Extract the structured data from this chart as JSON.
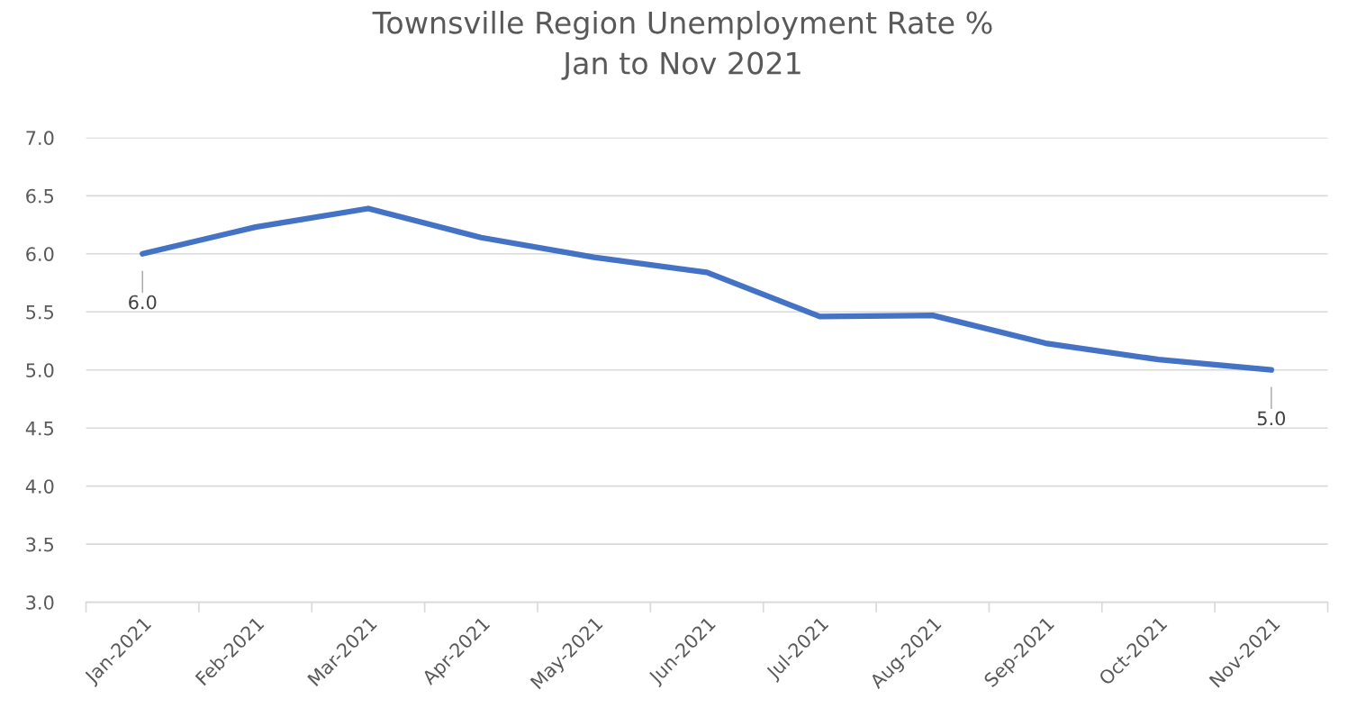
{
  "chart_data": {
    "type": "line",
    "title": "Townsville Region Unemployment Rate %\nJan to Nov 2021",
    "categories": [
      "Jan-2021",
      "Feb-2021",
      "Mar-2021",
      "Apr-2021",
      "May-2021",
      "Jun-2021",
      "Jul-2021",
      "Aug-2021",
      "Sep-2021",
      "Oct-2021",
      "Nov-2021"
    ],
    "series": [
      {
        "color": "#4472c4",
        "values": [
          6.0,
          6.23,
          6.39,
          6.14,
          5.97,
          5.84,
          5.46,
          5.47,
          5.23,
          5.09,
          5.0
        ],
        "value_labels": [
          "6.0",
          null,
          null,
          null,
          null,
          null,
          null,
          null,
          null,
          null,
          "5.0"
        ]
      }
    ],
    "ylim": [
      3.0,
      7.0
    ],
    "yticks": [
      {
        "value": 3.0,
        "label": "3.0"
      },
      {
        "value": 3.5,
        "label": "3.5"
      },
      {
        "value": 4.0,
        "label": "4.0"
      },
      {
        "value": 4.5,
        "label": "4.5"
      },
      {
        "value": 5.0,
        "label": "5.0"
      },
      {
        "value": 5.5,
        "label": "5.5"
      },
      {
        "value": 6.0,
        "label": "6.0"
      },
      {
        "value": 6.5,
        "label": "6.5"
      },
      {
        "value": 7.0,
        "label": "7.0"
      }
    ],
    "grid": "y",
    "marker": "none",
    "line_style": "solid"
  }
}
